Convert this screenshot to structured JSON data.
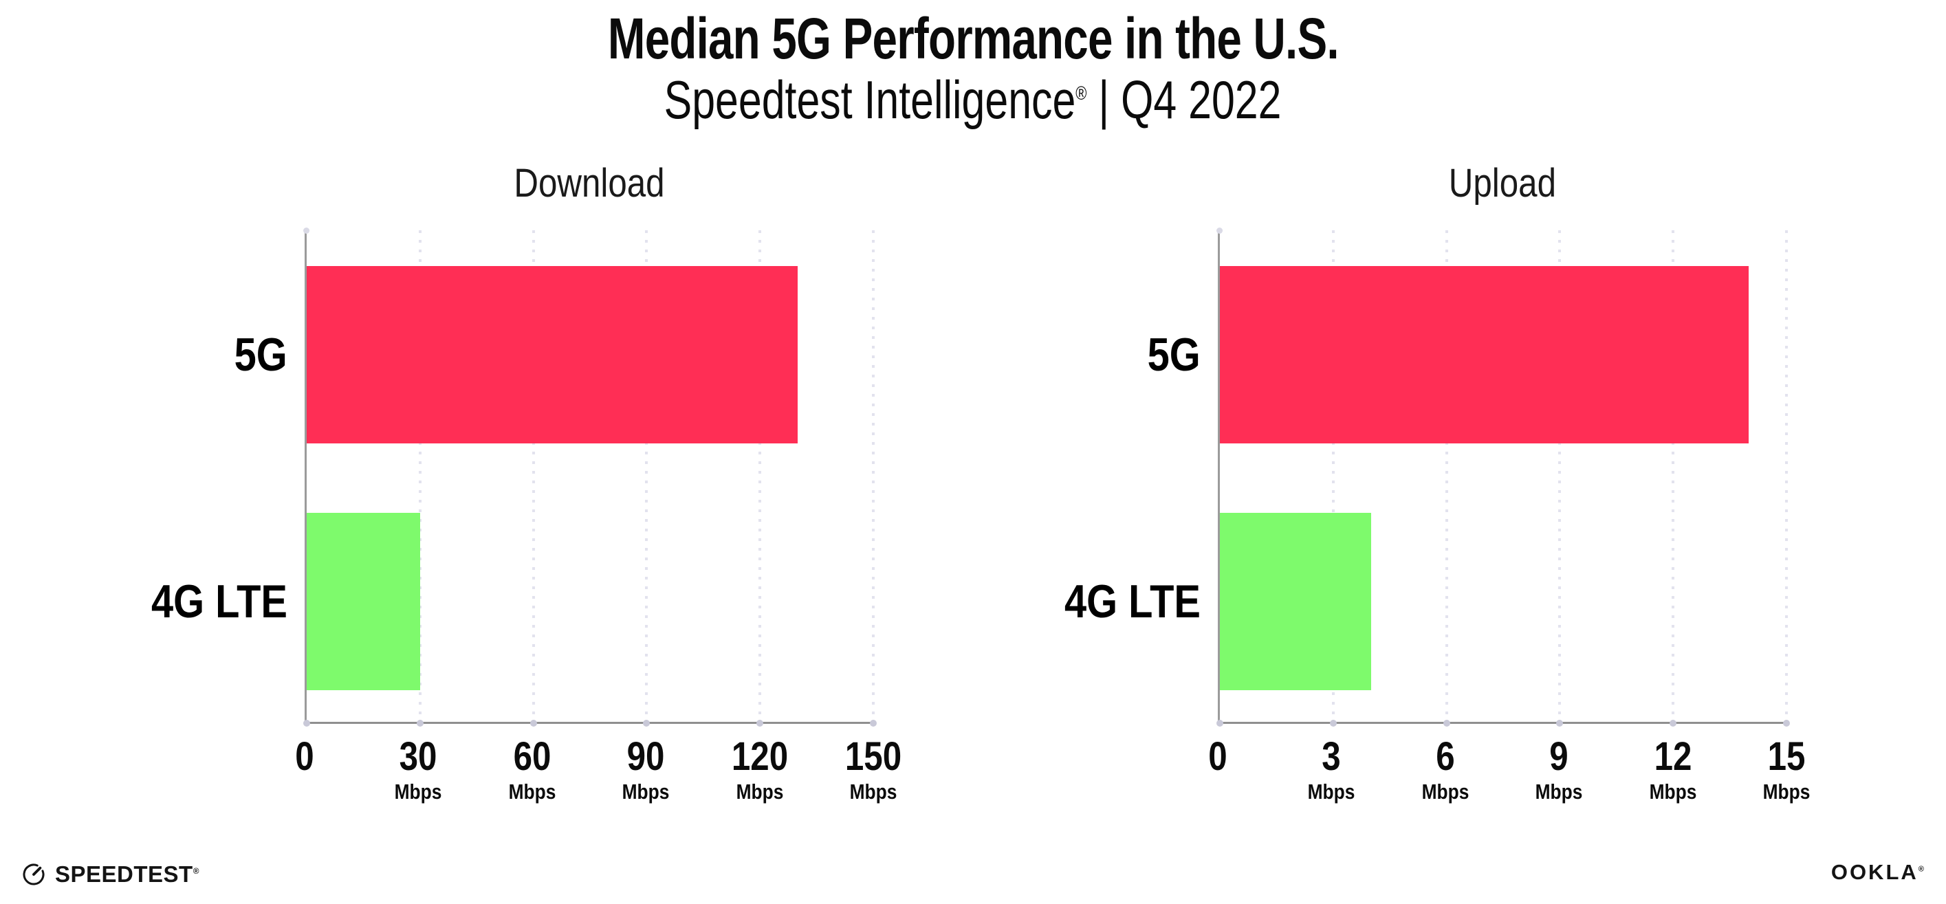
{
  "page": {
    "title": "Median 5G Performance in the U.S.",
    "subtitle_brand": "Speedtest Intelligence",
    "subtitle_reg": "®",
    "subtitle_rest": " | Q4 2022"
  },
  "chart_data": [
    {
      "type": "bar",
      "orientation": "horizontal",
      "title": "Download",
      "categories": [
        "5G",
        "4G LTE"
      ],
      "values": [
        130,
        30
      ],
      "unit": "Mbps",
      "xlim": [
        0,
        150
      ],
      "xticks": [
        0,
        30,
        60,
        90,
        120,
        150
      ],
      "bar_colors": [
        "#FF2E55",
        "#7EFA6C"
      ],
      "grid": "vertical-dotted",
      "legend": "none"
    },
    {
      "type": "bar",
      "orientation": "horizontal",
      "title": "Upload",
      "categories": [
        "5G",
        "4G LTE"
      ],
      "values": [
        14,
        4
      ],
      "unit": "Mbps",
      "xlim": [
        0,
        15
      ],
      "xticks": [
        0,
        3,
        6,
        9,
        12,
        15
      ],
      "bar_colors": [
        "#FF2E55",
        "#7EFA6C"
      ],
      "grid": "vertical-dotted",
      "legend": "none"
    }
  ],
  "colors": {
    "bar_5g": "#FF2E55",
    "bar_4g_lte": "#7EFA6C",
    "axis_line": "#9B9B9B",
    "gridline_dots": "#E2E2EE",
    "tick_dots": "#C9C9D8",
    "text": "#0B0B0B",
    "background": "#FFFFFF"
  },
  "footer": {
    "speedtest_label": "SPEEDTEST",
    "speedtest_reg": "®",
    "ookla_label": "OOKLA",
    "ookla_reg": "®"
  }
}
